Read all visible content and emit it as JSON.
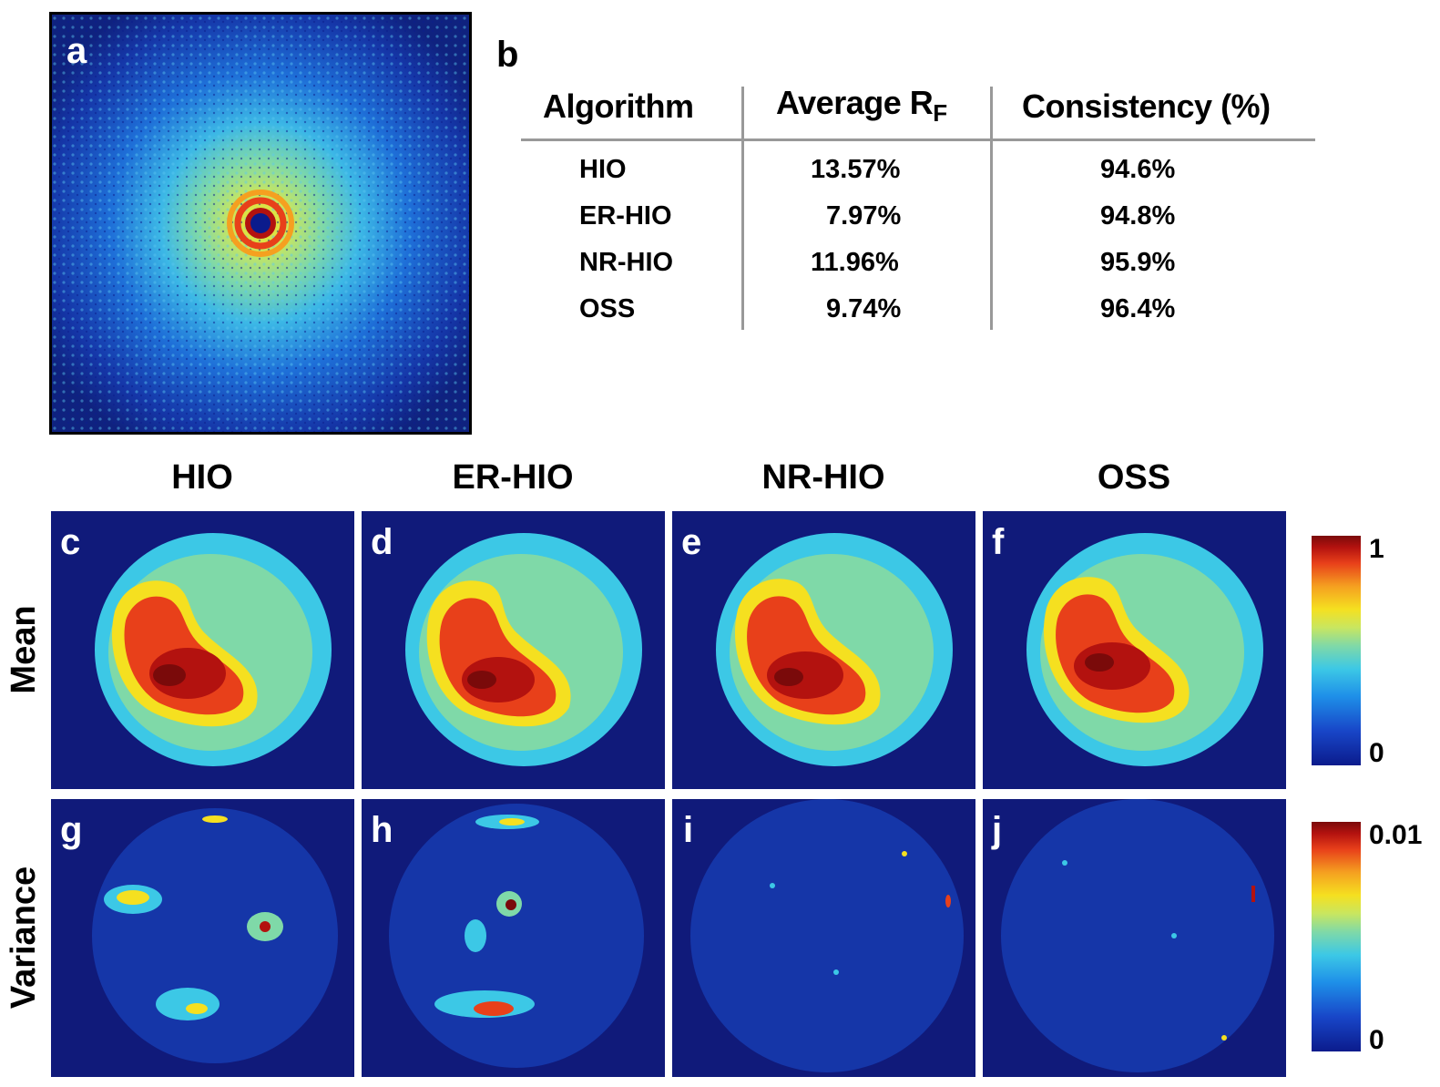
{
  "panels": {
    "a": "a",
    "b": "b",
    "c": "c",
    "d": "d",
    "e": "e",
    "f": "f",
    "g": "g",
    "h": "h",
    "i": "i",
    "j": "j"
  },
  "table": {
    "headers": {
      "algorithm": "Algorithm",
      "rf_main": "Average R",
      "rf_sub": "F",
      "consistency": "Consistency (%)"
    },
    "rows": [
      {
        "algorithm": "HIO",
        "rf": "13.57%",
        "consistency": "94.6%"
      },
      {
        "algorithm": "ER-HIO",
        "rf": "7.97%",
        "consistency": "94.8%"
      },
      {
        "algorithm": "NR-HIO",
        "rf": "11.96%",
        "consistency": "95.9%"
      },
      {
        "algorithm": "OSS",
        "rf": "9.74%",
        "consistency": "96.4%"
      }
    ]
  },
  "columns": [
    "HIO",
    "ER-HIO",
    "NR-HIO",
    "OSS"
  ],
  "rows": {
    "mean": "Mean",
    "variance": "Variance"
  },
  "colorbars": {
    "mean": {
      "max": "1",
      "min": "0"
    },
    "variance": {
      "max": "0.01",
      "min": "0"
    }
  },
  "colors": {
    "background_blue": "#101a7a",
    "jet": [
      "#0b1b8c",
      "#1846c8",
      "#1e8fe8",
      "#3cc8e6",
      "#7fd9a8",
      "#c8e660",
      "#f5e020",
      "#f5a020",
      "#e8401a",
      "#b3120f",
      "#7a0a0a"
    ]
  }
}
